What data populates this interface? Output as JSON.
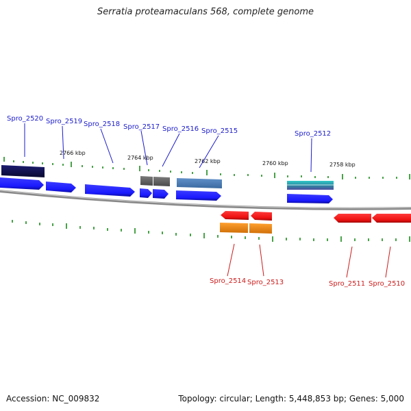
{
  "title": "Serratia proteamaculans 568, complete genome",
  "footer": {
    "accession": "Accession: NC_009832",
    "summary": "Topology: circular; Length: 5,448,853 bp; Genes: 5,000"
  },
  "colors": {
    "forward_cds": "#1a1aff",
    "reverse_cds": "#ee1111",
    "backbone": "#888888",
    "tick": "#1a8a1a",
    "top_label": "#1a1acc",
    "bottom_label": "#cc1a1a",
    "dark_navy": "#101050",
    "gray_feature": "#666666",
    "steel_blue": "#4a7ab0",
    "teal": "#2fb8b8",
    "orange": "#f08c10"
  },
  "scale_labels": [
    "2766 kbp",
    "2764 kbp",
    "2762 kbp",
    "2760 kbp",
    "2758 kbp"
  ],
  "genes_top": [
    "Spro_2520",
    "Spro_2519",
    "Spro_2518",
    "Spro_2517",
    "Spro_2516",
    "Spro_2515",
    "Spro_2512"
  ],
  "genes_bottom": [
    "Spro_2514",
    "Spro_2513",
    "Spro_2511",
    "Spro_2510"
  ]
}
